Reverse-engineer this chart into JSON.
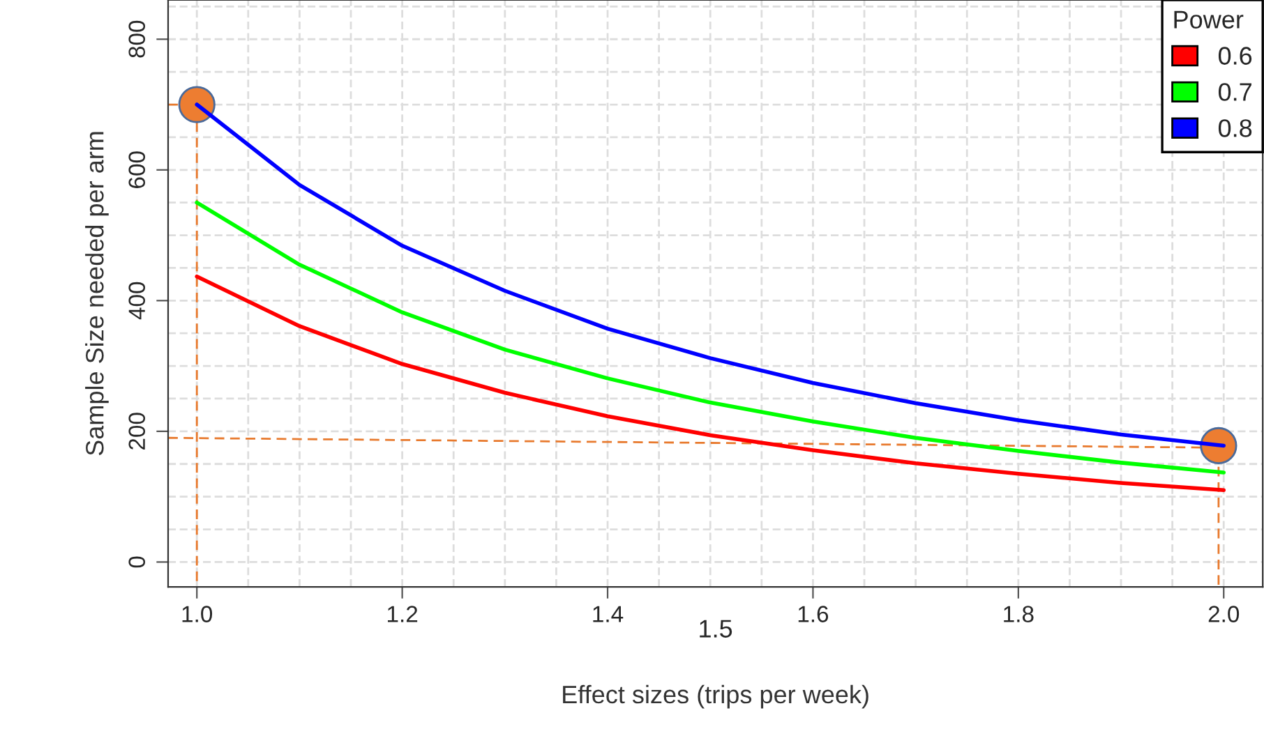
{
  "chart_data": {
    "type": "line",
    "xlabel": "Effect sizes (trips per week)",
    "ylabel": "Sample Size needed per arm",
    "legend_title": "Power",
    "x": [
      1.0,
      1.1,
      1.2,
      1.3,
      1.4,
      1.5,
      1.6,
      1.7,
      1.8,
      1.9,
      2.0
    ],
    "series": [
      {
        "name": "0.6",
        "color": "#ff0000",
        "values": [
          437,
          361,
          303,
          259,
          223,
          194,
          171,
          151,
          135,
          121,
          110
        ]
      },
      {
        "name": "0.7",
        "color": "#00ff00",
        "values": [
          550,
          455,
          382,
          325,
          281,
          244,
          215,
          190,
          170,
          152,
          137
        ]
      },
      {
        "name": "0.8",
        "color": "#0000ff",
        "values": [
          700,
          577,
          484,
          415,
          357,
          312,
          274,
          243,
          217,
          195,
          178
        ]
      },
      {
        "type": "line",
        "line_style": "dashed",
        "color": "#e87a2e",
        "x": [
          0.972,
          1.0,
          1.0
        ],
        "values": [
          700,
          700,
          -38
        ]
      },
      {
        "type": "line",
        "line_style": "dashed",
        "color": "#e87a2e",
        "x": [
          0.972,
          1.995,
          1.995
        ],
        "values": [
          190,
          175,
          -38
        ]
      },
      {
        "type": "scatter",
        "color": "#ed7d31",
        "x": [
          1.0,
          1.995
        ],
        "values": [
          700,
          178
        ]
      }
    ],
    "xlim": [
      0.972,
      2.038
    ],
    "ylim": [
      -38,
      860
    ],
    "xticks": [
      {
        "value": 1,
        "label": "1.0"
      },
      1.2,
      1.4,
      1.6,
      1.8,
      {
        "value": 2,
        "label": "2.0"
      }
    ],
    "yticks": [
      0,
      200,
      400,
      600,
      800
    ],
    "annotations": [
      "1.5"
    ],
    "grid": true,
    "legend": "top right"
  }
}
